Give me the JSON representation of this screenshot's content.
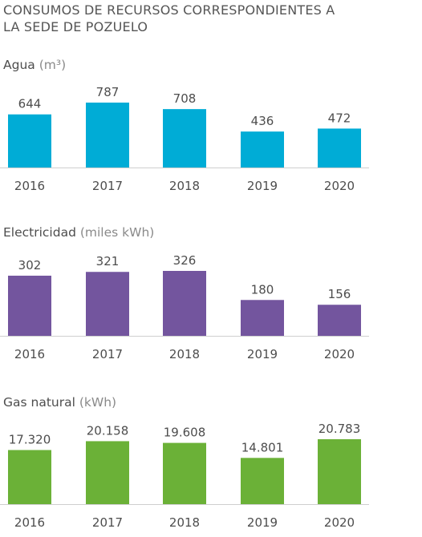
{
  "title_lines": [
    "CONSUMOS DE RECURSOS CORRESPONDIENTES A",
    "LA SEDE DE POZUELO"
  ],
  "colors": {
    "water": "#00acd6",
    "electricity": "#73559e",
    "gas": "#6bb137",
    "axis": "#cfcfcf",
    "text": "#4d4d4d",
    "unit": "#8a8a8a"
  },
  "chart_data": [
    {
      "type": "bar",
      "title": "Agua",
      "unit": "(m³)",
      "categories": [
        "2016",
        "2017",
        "2018",
        "2019",
        "2020"
      ],
      "values": [
        644,
        787,
        708,
        436,
        472
      ],
      "value_labels": [
        "644",
        "787",
        "708",
        "436",
        "472"
      ],
      "ylim": [
        0,
        787
      ],
      "color": "#00acd6",
      "grid": false,
      "legend": "none"
    },
    {
      "type": "bar",
      "title": "Electricidad",
      "unit": "(miles kWh)",
      "categories": [
        "2016",
        "2017",
        "2018",
        "2019",
        "2020"
      ],
      "values": [
        302,
        321,
        326,
        180,
        156
      ],
      "value_labels": [
        "302",
        "321",
        "326",
        "180",
        "156"
      ],
      "ylim": [
        0,
        326
      ],
      "color": "#73559e",
      "grid": false,
      "legend": "none"
    },
    {
      "type": "bar",
      "title": "Gas natural",
      "unit": "(kWh)",
      "categories": [
        "2016",
        "2017",
        "2018",
        "2019",
        "2020"
      ],
      "values": [
        17320,
        20158,
        19608,
        14801,
        20783
      ],
      "value_labels": [
        "17.320",
        "20.158",
        "19.608",
        "14.801",
        "20.783"
      ],
      "ylim": [
        0,
        20783
      ],
      "color": "#6bb137",
      "grid": false,
      "legend": "none"
    }
  ]
}
